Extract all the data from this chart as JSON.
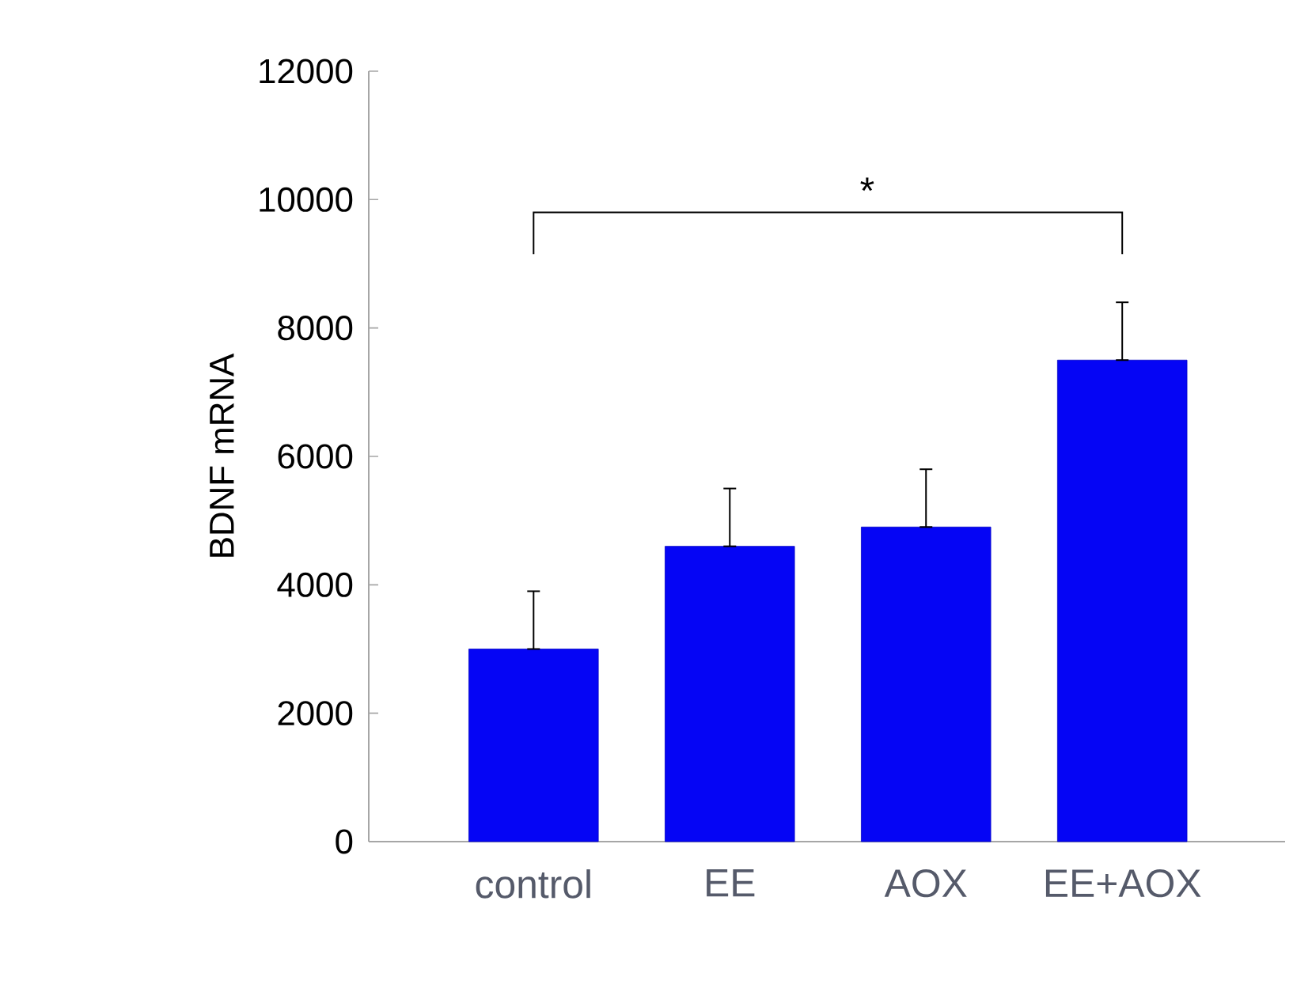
{
  "chart_data": {
    "type": "bar",
    "ylabel": "BDNF mRNA",
    "categories": [
      "control",
      "EE",
      "AOX",
      "EE+AOX"
    ],
    "values": [
      3000,
      4600,
      4900,
      7500
    ],
    "errors": [
      [
        3000,
        3900
      ],
      [
        4600,
        5500
      ],
      [
        4900,
        5800
      ],
      [
        7500,
        8400
      ]
    ],
    "color": "#0505f5",
    "ylim": [
      0,
      12000
    ],
    "yticks": [
      0,
      2000,
      4000,
      6000,
      8000,
      10000,
      12000
    ],
    "annotations": [
      "*"
    ]
  }
}
